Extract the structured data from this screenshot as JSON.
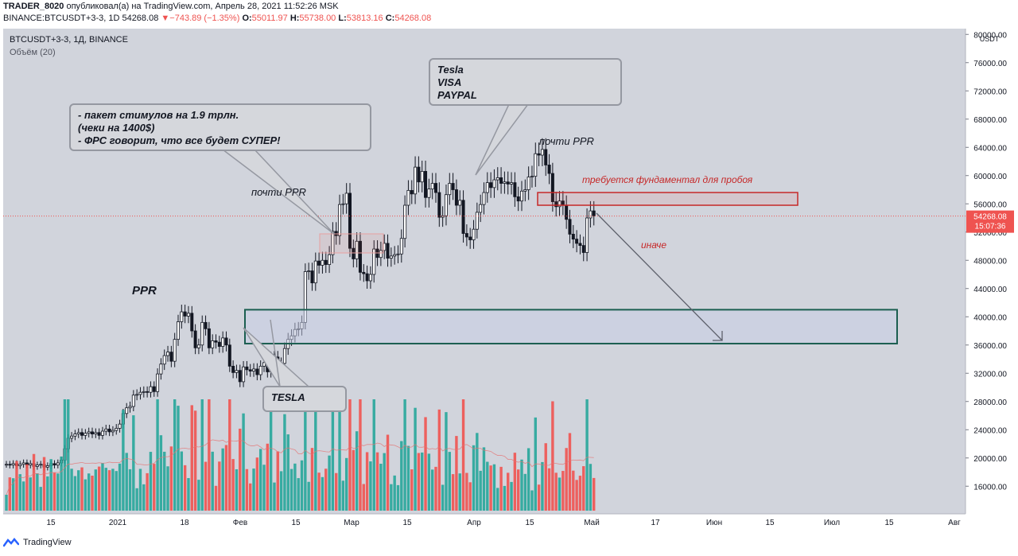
{
  "header": {
    "user": "TRADER_8020",
    "published_text": " опубликовал(а) на TradingView.com, Апрель 28, 2021 11:52:26 MSK",
    "symbol_prefix": "BINANCE:BTCUSDT+3-3, 1D ",
    "last": "54268.08",
    "change": "−743.89 (−1.35%)",
    "o_label": "O:",
    "o_val": "55011.97",
    "h_label": "H:",
    "h_val": "55738.00",
    "l_label": "L:",
    "l_val": "53813.16",
    "c_label": "C:",
    "c_val": "54268.08"
  },
  "legend": {
    "symbol": "BTCUSDT+3-3, 1Д, BINANCE",
    "volume": "Объём (20)"
  },
  "footer": {
    "brand": "TradingView"
  },
  "colors": {
    "up": "#26a69a",
    "down": "#ef5350",
    "bg": "#d1d4dc",
    "zone_green": "#1b5e50",
    "zone_red": "#c62828",
    "price_label": "#ef5350"
  },
  "chart_data": {
    "type": "candlestick",
    "title": "BTCUSDT+3-3, 1Д, BINANCE",
    "currency": "USDT",
    "ylim": [
      12000,
      80000
    ],
    "y_ticks": [
      16000,
      20000,
      24000,
      28000,
      32000,
      36000,
      40000,
      44000,
      48000,
      52000,
      56000,
      60000,
      64000,
      68000,
      72000,
      76000,
      80000
    ],
    "y_tick_labels": [
      "16000.00",
      "20000.00",
      "24000.00",
      "28000.00",
      "32000.00",
      "36000.00",
      "40000.00",
      "44000.00",
      "48000.00",
      "52000.00",
      "56000.00",
      "60000.00",
      "64000.00",
      "68000.00",
      "72000.00",
      "76000.00",
      "80000.00"
    ],
    "x_ticks": [
      "15",
      "2021",
      "18",
      "Фев",
      "15",
      "Мар",
      "15",
      "Апр",
      "15",
      "Май",
      "17",
      "Июн",
      "15",
      "Июл",
      "15",
      "Авг"
    ],
    "last_price": {
      "value": 54268.08,
      "label": "54268.08",
      "countdown": "15:07:36"
    },
    "close_series": [
      19100,
      19000,
      19200,
      18900,
      19100,
      19300,
      19000,
      19200,
      18800,
      19000,
      19100,
      18700,
      18900,
      19200,
      19000,
      19300,
      19700,
      21300,
      22800,
      23100,
      23400,
      23600,
      23200,
      23500,
      23700,
      23400,
      23600,
      23200,
      23800,
      24100,
      23700,
      23900,
      24200,
      24800,
      26300,
      27100,
      27300,
      28900,
      29000,
      29300,
      29400,
      29300,
      30100,
      29400,
      31900,
      33300,
      34500,
      35000,
      33700,
      36800,
      39300,
      40700,
      40100,
      40500,
      38000,
      35600,
      36000,
      39200,
      38300,
      35600,
      36600,
      36400,
      35800,
      37000,
      36000,
      33000,
      32100,
      32400,
      30800,
      32900,
      32500,
      32300,
      32600,
      31800,
      33000,
      33500,
      32200,
      34200,
      34300,
      33100,
      33400,
      35500,
      36800,
      37300,
      38200,
      38300,
      39200,
      46400,
      46500,
      44800,
      47900,
      47300,
      48000,
      47400,
      48800,
      52100,
      51500,
      55900,
      56000,
      57500,
      49700,
      48200,
      50700,
      46300,
      46100,
      45100,
      46000,
      49600,
      48400,
      49400,
      50400,
      48300,
      48600,
      48800,
      48900,
      51100,
      55800,
      57900,
      57400,
      61200,
      59100,
      60600,
      56900,
      58100,
      58900,
      57600,
      54100,
      54300,
      57300,
      58900,
      58000,
      55800,
      56500,
      51800,
      51300,
      50900,
      52400,
      54800,
      55900,
      57600,
      59000,
      58300,
      59400,
      59700,
      58900,
      59100,
      58800,
      59000,
      57000,
      56400,
      57800,
      58000,
      59800,
      59900,
      63100,
      62900,
      63700,
      61500,
      60300,
      56300,
      55600,
      56400,
      55800,
      53800,
      51700,
      51000,
      50400,
      50100,
      49100,
      54000,
      55000,
      54300
    ],
    "annotations": [
      {
        "type": "callout",
        "lines": [
          "- пакет стимулов на 1.9 трлн.",
          "(чеки на 1400$)",
          "- ФРС говорит, что все будет СУПЕР!"
        ]
      },
      {
        "type": "callout",
        "lines": [
          "Tesla",
          "VISA",
          "PAYPAL"
        ]
      },
      {
        "type": "callout",
        "lines": [
          "TESLA"
        ]
      },
      {
        "type": "text",
        "text": "почти PPR"
      },
      {
        "type": "text",
        "text": "почти PPR"
      },
      {
        "type": "text",
        "text": "PPR"
      },
      {
        "type": "text",
        "text": "требуется фундаментал для пробоя"
      },
      {
        "type": "text",
        "text": "иначе"
      },
      {
        "type": "zone",
        "color": "green",
        "from": 36200,
        "to": 41000
      },
      {
        "type": "zone",
        "color": "red",
        "from": 55800,
        "to": 57600
      }
    ]
  }
}
